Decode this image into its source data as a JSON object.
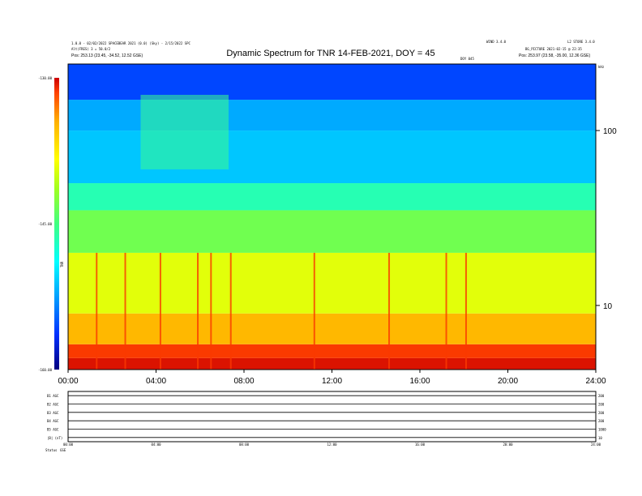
{
  "header": {
    "title": "Dynamic Spectrum for TNR 14-FEB-2021, DOY = 45",
    "left_line1": "1.0.0 - 02/02/2022 SPACEBEAR 2021 (0.0) (Sky) - 2/15/2022 SPC",
    "left_line2": "Alt(FRES) 3 = 50.0/2",
    "left_line3": "Pos: 253.13 (23.45, -34.52, 12.52 GSE)",
    "mid_right_line1": "WIND 3.4.0",
    "mid_right_line2": "BG_PICTURE 2021-02-15 @ 22:35",
    "right_line1": "L2 STORE 3.4.0",
    "right_line3": "Pos: 253.97 (23.58, -35.00, 12.36 GSE)",
    "center_small": "DOY 045"
  },
  "chart_data": {
    "type": "heatmap",
    "title": "Dynamic Spectrum for TNR 14-FEB-2021, DOY = 45",
    "x_axis": {
      "unit": "hours",
      "range": [
        0,
        24
      ],
      "tick_values": [
        0,
        4,
        8,
        12,
        16,
        20,
        24
      ],
      "tick_labels": [
        "00:00",
        "04:00",
        "08:00",
        "12:00",
        "16:00",
        "20:00",
        "24:00"
      ]
    },
    "y_axis": {
      "unit": "kHz",
      "scale": "log",
      "range": [
        4.3,
        240
      ],
      "tick_values": [
        100,
        10
      ],
      "tick_labels": [
        "100",
        "10"
      ],
      "unit_label": "kHz"
    },
    "colorbar": {
      "unit": "dB",
      "range": [
        -160,
        -130
      ],
      "tick_values": [
        -130,
        -145,
        -160
      ],
      "tick_labels": [
        "-130.00",
        "-145.00",
        "-160.00"
      ],
      "label": "TNR",
      "colors": [
        "#00007f",
        "#0030ff",
        "#00a0ff",
        "#00ffff",
        "#40ff80",
        "#a0ff20",
        "#ffff00",
        "#ffb000",
        "#ff4000",
        "#cc0000"
      ]
    },
    "bands": [
      {
        "f_low": 4.3,
        "f_high": 5.0,
        "level": -131
      },
      {
        "f_low": 5.0,
        "f_high": 6.0,
        "level": -133
      },
      {
        "f_low": 6.0,
        "f_high": 9.0,
        "level": -137
      },
      {
        "f_low": 9.0,
        "f_high": 20,
        "level": -141
      },
      {
        "f_low": 20,
        "f_high": 35,
        "level": -145
      },
      {
        "f_low": 35,
        "f_high": 50,
        "level": -148
      },
      {
        "f_low": 50,
        "f_high": 100,
        "level": -152
      },
      {
        "f_low": 100,
        "f_high": 150,
        "level": -153
      },
      {
        "f_low": 150,
        "f_high": 240,
        "level": -156
      }
    ],
    "bursts_hours": [
      1.3,
      2.6,
      4.2,
      5.9,
      6.5,
      7.4,
      11.2,
      14.6,
      17.2,
      18.1
    ],
    "interference_window_hours": [
      3.3,
      7.3
    ],
    "lower_panel_rows": [
      {
        "label": "B1 AGC",
        "right": "200"
      },
      {
        "label": "B2 AGC",
        "right": "200"
      },
      {
        "label": "B3 AGC",
        "right": "200"
      },
      {
        "label": "B4 AGC",
        "right": "200"
      },
      {
        "label": "B5 AGC",
        "right": "1000"
      },
      {
        "label": "|B| (nT)",
        "right": "10"
      }
    ],
    "lower_panel_x_labels": [
      "00:00",
      "04:00",
      "08:00",
      "12:00",
      "16:00",
      "20:00",
      "24:00"
    ],
    "footer_label": "Status",
    "footer_value": "GSE"
  }
}
